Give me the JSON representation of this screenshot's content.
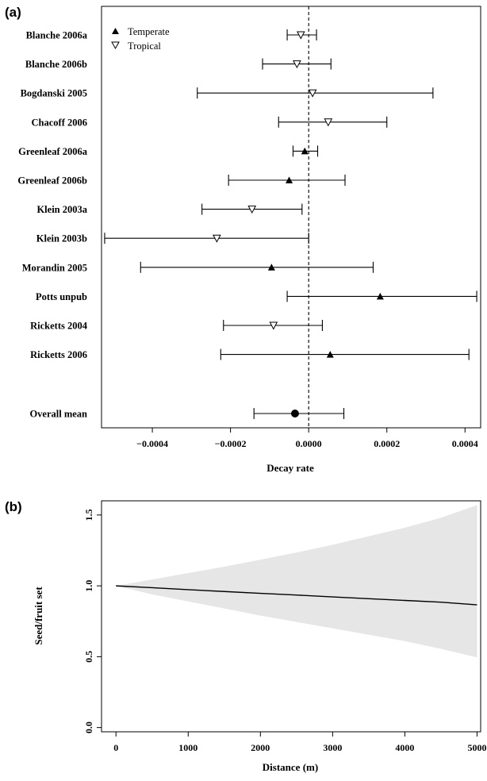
{
  "chart_data": [
    {
      "panel_label": "(a)",
      "type": "scatter",
      "xlabel": "Decay rate",
      "xlim": [
        -0.00053,
        0.00044
      ],
      "xticks": [
        -0.0004,
        -0.0002,
        0.0,
        0.0002,
        0.0004
      ],
      "xtick_labels": [
        "−0.0004",
        "−0.0002",
        "0.0000",
        "0.0002",
        "0.0004"
      ],
      "reference_line": 0,
      "legend": {
        "position": "top-left",
        "entries": [
          {
            "name": "Temperate",
            "marker": "filled-triangle"
          },
          {
            "name": "Tropical",
            "marker": "open-inverted-triangle"
          }
        ]
      },
      "studies": [
        {
          "name": "Blanche 2006a",
          "group": "tropical",
          "estimate": -2e-05,
          "lower": -5.5e-05,
          "upper": 2e-05
        },
        {
          "name": "Blanche 2006b",
          "group": "tropical",
          "estimate": -3e-05,
          "lower": -0.000118,
          "upper": 5.7e-05
        },
        {
          "name": "Bogdanski 2005",
          "group": "tropical",
          "estimate": 1e-05,
          "lower": -0.000285,
          "upper": 0.000318
        },
        {
          "name": "Chacoff 2006",
          "group": "tropical",
          "estimate": 5e-05,
          "lower": -7.7e-05,
          "upper": 0.0002
        },
        {
          "name": "Greenleaf 2006a",
          "group": "temperate",
          "estimate": -1e-05,
          "lower": -4e-05,
          "upper": 2.3e-05
        },
        {
          "name": "Greenleaf 2006b",
          "group": "temperate",
          "estimate": -5e-05,
          "lower": -0.000205,
          "upper": 9.3e-05
        },
        {
          "name": "Klein 2003a",
          "group": "tropical",
          "estimate": -0.000145,
          "lower": -0.000273,
          "upper": -1.7e-05
        },
        {
          "name": "Klein 2003b",
          "group": "tropical",
          "estimate": -0.000235,
          "lower": -0.000522,
          "upper": 0.0
        },
        {
          "name": "Morandin 2005",
          "group": "temperate",
          "estimate": -9.5e-05,
          "lower": -0.00043,
          "upper": 0.000165
        },
        {
          "name": "Potts unpub",
          "group": "temperate",
          "estimate": 0.000183,
          "lower": -5.5e-05,
          "upper": 0.00043
        },
        {
          "name": "Ricketts 2004",
          "group": "tropical",
          "estimate": -9e-05,
          "lower": -0.000218,
          "upper": 3.5e-05
        },
        {
          "name": "Ricketts 2006",
          "group": "temperate",
          "estimate": 5.5e-05,
          "lower": -0.000225,
          "upper": 0.00041
        }
      ],
      "overall": {
        "name": "Overall mean",
        "estimate": -3.5e-05,
        "lower": -0.00014,
        "upper": 9e-05
      }
    },
    {
      "panel_label": "(b)",
      "type": "line",
      "xlabel": "Distance (m)",
      "ylabel": "Seed/fruit set",
      "xlim": [
        -200,
        5050
      ],
      "ylim": [
        -0.03,
        1.6
      ],
      "xticks": [
        0,
        1000,
        2000,
        3000,
        4000,
        5000
      ],
      "xtick_labels": [
        "0",
        "1000",
        "2000",
        "3000",
        "4000",
        "5000"
      ],
      "yticks": [
        0.0,
        0.5,
        1.0,
        1.5
      ],
      "ytick_labels": [
        "0.0",
        "0.5",
        "1.0",
        "1.5"
      ],
      "band_color": "#e6e6e6",
      "line_color": "#000000",
      "x": [
        0,
        500,
        1000,
        1500,
        2000,
        2500,
        3000,
        3500,
        4000,
        4500,
        5000
      ],
      "series": [
        {
          "role": "mean",
          "values": [
            1.0,
            0.987,
            0.973,
            0.96,
            0.947,
            0.935,
            0.922,
            0.909,
            0.897,
            0.885,
            0.866
          ]
        },
        {
          "role": "upper",
          "values": [
            1.0,
            1.045,
            1.09,
            1.135,
            1.185,
            1.235,
            1.29,
            1.35,
            1.41,
            1.48,
            1.57
          ]
        },
        {
          "role": "lower",
          "values": [
            1.0,
            0.94,
            0.89,
            0.84,
            0.79,
            0.745,
            0.7,
            0.655,
            0.61,
            0.555,
            0.495
          ]
        }
      ]
    }
  ]
}
